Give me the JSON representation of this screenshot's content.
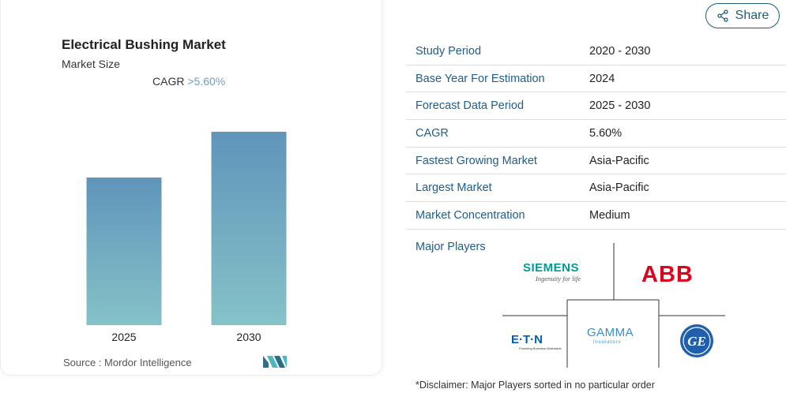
{
  "chart": {
    "title": "Electrical Bushing Market",
    "subtitle": "Market Size",
    "cagr_label": "CAGR",
    "cagr_value": ">5.60%",
    "source": "Source :  Mordor Intelligence"
  },
  "chart_data": {
    "type": "bar",
    "categories": [
      "2025",
      "2030"
    ],
    "values": [
      1.0,
      1.31
    ],
    "title": "Electrical Bushing Market",
    "subtitle": "Market Size",
    "xlabel": "",
    "ylabel": "",
    "grid": false,
    "colors": {
      "top": "#5f95ba",
      "bottom": "#85c2c8"
    }
  },
  "share": {
    "label": "Share"
  },
  "info": {
    "rows": [
      {
        "label": "Study Period",
        "value": "2020 - 2030"
      },
      {
        "label": "Base Year For Estimation",
        "value": "2024"
      },
      {
        "label": "Forecast Data Period",
        "value": "2025 - 2030"
      },
      {
        "label": "CAGR",
        "value": "5.60%"
      },
      {
        "label": "Fastest Growing Market",
        "value": "Asia-Pacific"
      },
      {
        "label": "Largest Market",
        "value": "Asia-Pacific"
      },
      {
        "label": "Market Concentration",
        "value": "Medium"
      }
    ],
    "players_label": "Major Players",
    "players": {
      "siemens": "SIEMENS",
      "siemens_tagline": "Ingenuity for life",
      "abb": "ABB",
      "eaton": "E·T·N",
      "eaton_tagline": "Powering Business Worldwide",
      "gamma": "GAMMA",
      "gamma_tagline": "insulators",
      "ge": "GE"
    },
    "disclaimer": "*Disclaimer: Major Players sorted in no particular order"
  },
  "colors": {
    "accent": "#1f5d8c",
    "share": "#1f5d78",
    "abb_red": "#e2001a",
    "siemens_teal": "#009999",
    "eaton_blue": "#005eb8",
    "ge_blue": "#1f5fae"
  }
}
